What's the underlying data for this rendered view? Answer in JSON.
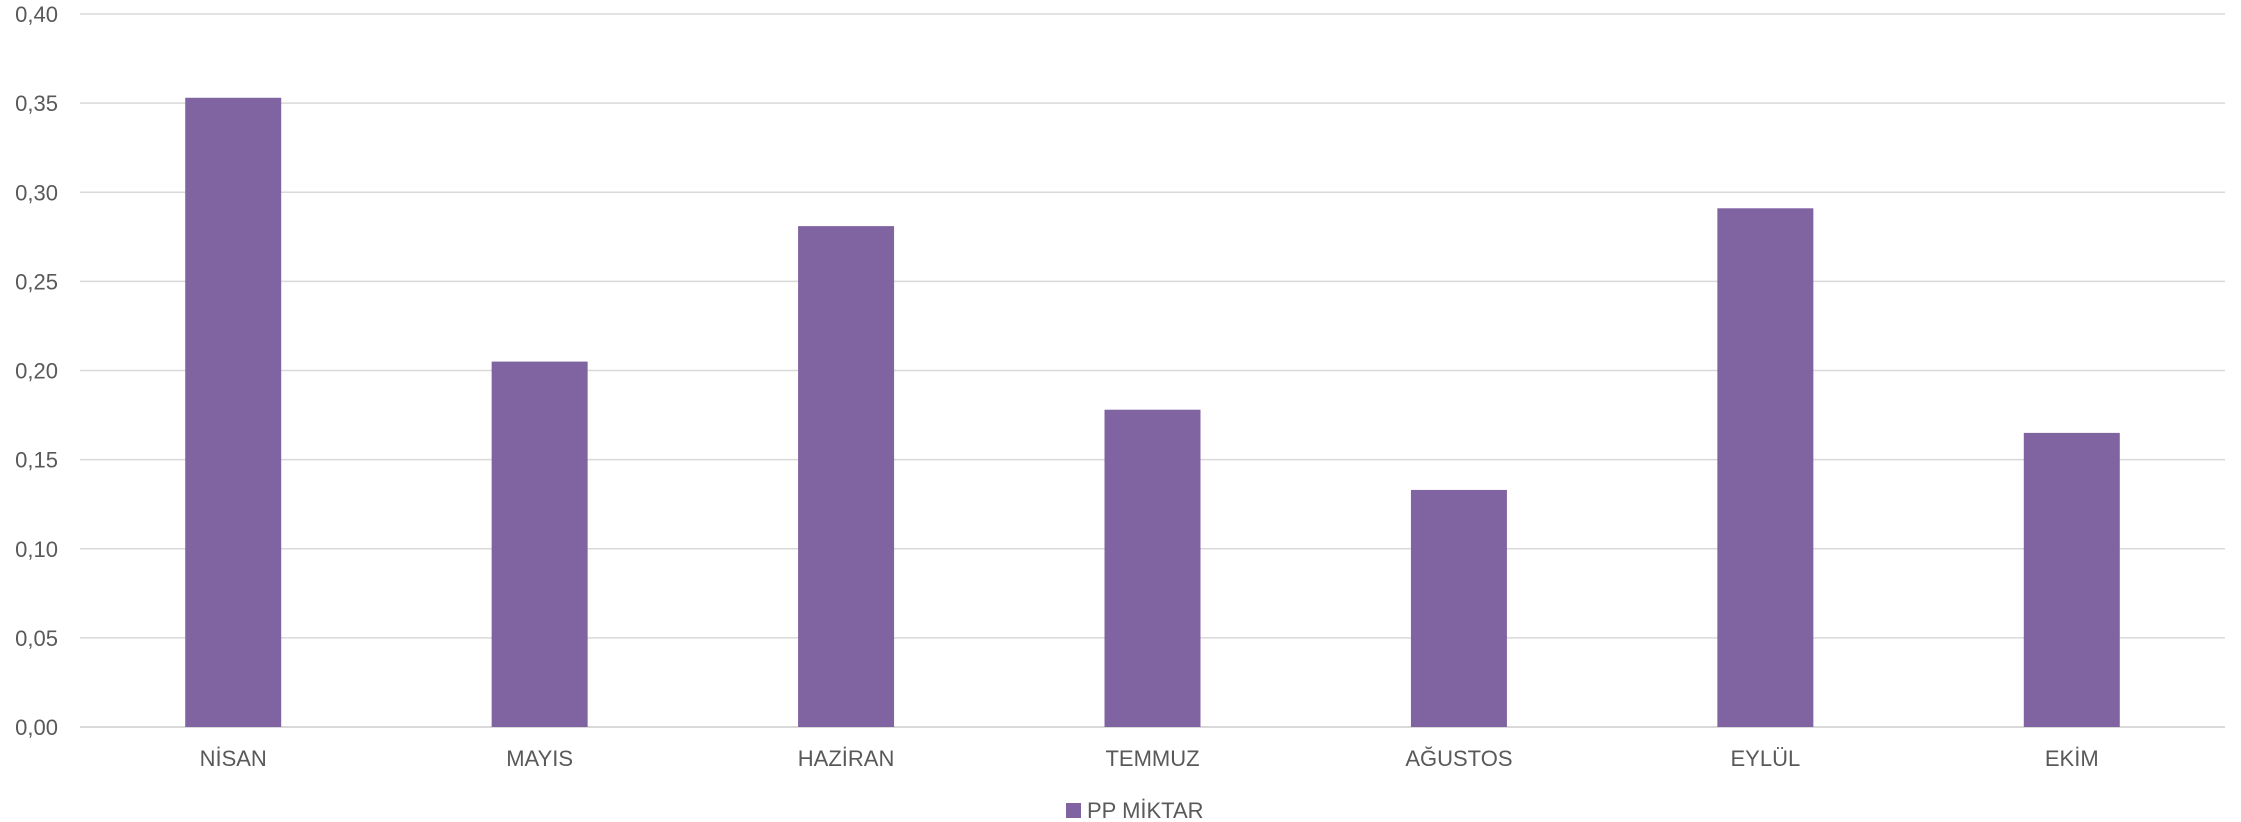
{
  "chart_data": {
    "type": "bar",
    "categories": [
      "NİSAN",
      "MAYIS",
      "HAZİRAN",
      "TEMMUZ",
      "AĞUSTOS",
      "EYLÜL",
      "EKİM"
    ],
    "series": [
      {
        "name": "PP MİKTAR",
        "values": [
          0.353,
          0.205,
          0.281,
          0.178,
          0.133,
          0.291,
          0.165
        ],
        "color": "#8064A2"
      }
    ],
    "y_ticks": [
      "0,00",
      "0,05",
      "0,10",
      "0,15",
      "0,20",
      "0,25",
      "0,30",
      "0,35",
      "0,40"
    ],
    "ylim": [
      0,
      0.4
    ],
    "grid": true,
    "legend_position": "bottom"
  }
}
